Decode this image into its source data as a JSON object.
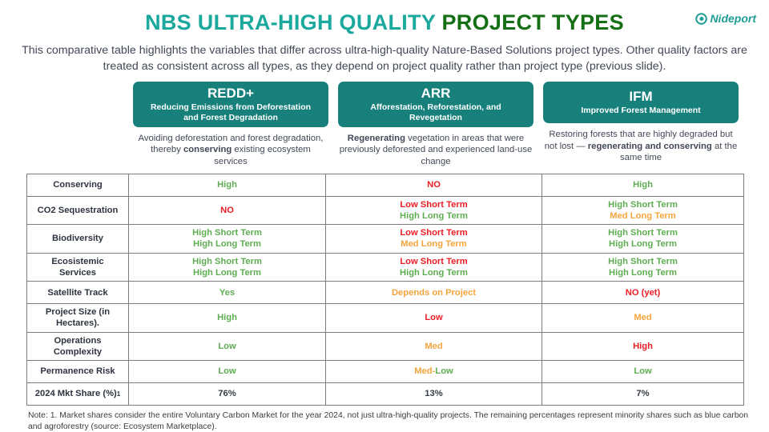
{
  "header": {
    "title_teal": "NBS ULTRA-HIGH QUALITY",
    "title_green": "PROJECT TYPES",
    "logo_text": "Nideport"
  },
  "intro": {
    "text": "This comparative table highlights the variables that differ across ultra-high-quality Nature-Based Solutions project types. Other quality factors are treated as consistent across all types, as they depend on project quality rather than project type (previous slide)."
  },
  "project_types": [
    {
      "title": "REDD+",
      "subtitle": "Reducing Emissions from Deforestation and Forest Degradation",
      "description": [
        {
          "t": "Avoiding deforestation and forest degradation, thereby ",
          "b": false
        },
        {
          "t": "conserving",
          "b": true
        },
        {
          "t": " existing ecosystem services",
          "b": false
        }
      ]
    },
    {
      "title": "ARR",
      "subtitle": "Afforestation, Reforestation, and Revegetation",
      "description": [
        {
          "t": "Regenerating",
          "b": true
        },
        {
          "t": " vegetation in areas that were previously deforested and experienced land-use change",
          "b": false
        }
      ]
    },
    {
      "title": "IFM",
      "subtitle": "Improved Forest Management",
      "description": [
        {
          "t": "Restoring forests that are highly degraded but not lost — ",
          "b": false
        },
        {
          "t": "regenerating and conserving",
          "b": true
        },
        {
          "t": " at the same time",
          "b": false
        }
      ]
    }
  ],
  "table": {
    "rows": [
      {
        "label": "Conserving",
        "cells": [
          [
            [
              {
                "t": "High",
                "c": "green"
              }
            ]
          ],
          [
            [
              {
                "t": "NO",
                "c": "red"
              }
            ]
          ],
          [
            [
              {
                "t": "High",
                "c": "green"
              }
            ]
          ]
        ]
      },
      {
        "label": "CO2 Sequestration",
        "cells": [
          [
            [
              {
                "t": "NO",
                "c": "red"
              }
            ]
          ],
          [
            [
              {
                "t": "Low Short Term",
                "c": "red"
              }
            ],
            [
              {
                "t": "High Long Term",
                "c": "green"
              }
            ]
          ],
          [
            [
              {
                "t": "High Short Term",
                "c": "green"
              }
            ],
            [
              {
                "t": "Med Long Term",
                "c": "orange"
              }
            ]
          ]
        ]
      },
      {
        "label": "Biodiversity",
        "cells": [
          [
            [
              {
                "t": "High Short Term",
                "c": "green"
              }
            ],
            [
              {
                "t": "High Long Term",
                "c": "green"
              }
            ]
          ],
          [
            [
              {
                "t": "Low Short Term",
                "c": "red"
              }
            ],
            [
              {
                "t": "Med Long Term",
                "c": "orange"
              }
            ]
          ],
          [
            [
              {
                "t": "High Short Term",
                "c": "green"
              }
            ],
            [
              {
                "t": "High Long Term",
                "c": "green"
              }
            ]
          ]
        ]
      },
      {
        "label": "Ecosistemic Services",
        "cells": [
          [
            [
              {
                "t": "High Short Term",
                "c": "green"
              }
            ],
            [
              {
                "t": "High Long Term",
                "c": "green"
              }
            ]
          ],
          [
            [
              {
                "t": "Low Short Term",
                "c": "red"
              }
            ],
            [
              {
                "t": "High Long Term",
                "c": "green"
              }
            ]
          ],
          [
            [
              {
                "t": "High Short Term",
                "c": "green"
              }
            ],
            [
              {
                "t": "High Long Term",
                "c": "green"
              }
            ]
          ]
        ]
      },
      {
        "label": "Satellite Track",
        "cells": [
          [
            [
              {
                "t": "Yes",
                "c": "green"
              }
            ]
          ],
          [
            [
              {
                "t": "Depends on Project",
                "c": "orange"
              }
            ]
          ],
          [
            [
              {
                "t": "NO (yet)",
                "c": "red"
              }
            ]
          ]
        ]
      },
      {
        "label": "Project Size (in Hectares).",
        "cells": [
          [
            [
              {
                "t": "High",
                "c": "green"
              }
            ]
          ],
          [
            [
              {
                "t": "Low",
                "c": "red"
              }
            ]
          ],
          [
            [
              {
                "t": "Med",
                "c": "orange"
              }
            ]
          ]
        ]
      },
      {
        "label": "Operations Complexity",
        "cells": [
          [
            [
              {
                "t": "Low",
                "c": "green"
              }
            ]
          ],
          [
            [
              {
                "t": "Med",
                "c": "orange"
              }
            ]
          ],
          [
            [
              {
                "t": "High",
                "c": "red"
              }
            ]
          ]
        ]
      },
      {
        "label": "Permanence Risk",
        "cells": [
          [
            [
              {
                "t": "Low",
                "c": "green"
              }
            ]
          ],
          [
            [
              {
                "t": "Med-",
                "c": "orange"
              },
              {
                "t": "Low",
                "c": "green"
              }
            ]
          ],
          [
            [
              {
                "t": "Low",
                "c": "green"
              }
            ]
          ]
        ]
      },
      {
        "label": "2024 Mkt Share (%)",
        "label_sub": "1",
        "cells": [
          [
            [
              {
                "t": "76%",
                "c": "dark"
              }
            ]
          ],
          [
            [
              {
                "t": "13%",
                "c": "dark"
              }
            ]
          ],
          [
            [
              {
                "t": "7%",
                "c": "dark"
              }
            ]
          ]
        ]
      }
    ]
  },
  "footnote": {
    "text": "Note: 1. Market shares consider the entire Voluntary Carbon Market for the year 2024, not just ultra-high-quality projects. The remaining percentages represent minority shares such as blue carbon and agroforestry (source: Ecosystem Marketplace)."
  },
  "colors": {
    "green": "#5fad52",
    "red": "#ec1c24",
    "orange": "#f5a43c",
    "dark": "#333b46",
    "brand_teal_box": "#17807b",
    "title_teal": "#1ba89d",
    "title_green": "#156f14",
    "logo_teal": "#1f9d96"
  }
}
